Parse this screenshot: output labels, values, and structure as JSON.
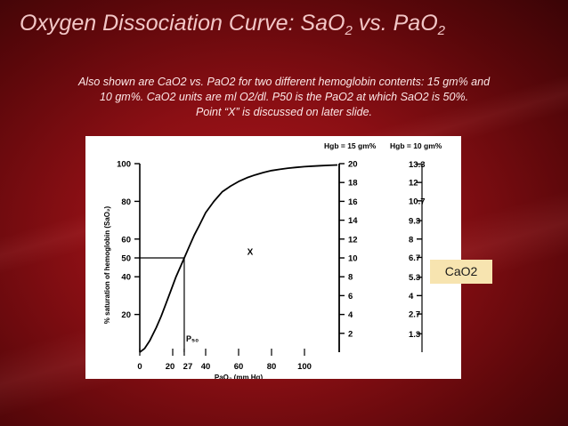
{
  "slide": {
    "title_main": "Oxygen Dissociation Curve:  SaO",
    "title_sub1": "2",
    "title_vs": " vs. PaO",
    "title_sub2": "2",
    "caption_line1": "Also shown are CaO2 vs. PaO2 for two different hemoglobin contents:  15 gm% and",
    "caption_line2": "10 gm%.  CaO2 units are ml O2/dl.  P50 is the PaO2 at which SaO2 is 50%.",
    "caption_line3": "Point “X” is discussed on later slide.",
    "cao2_label": "CaO2"
  },
  "chart_data": {
    "type": "line",
    "x_ticks": [
      0,
      20,
      27,
      40,
      60,
      80,
      100
    ],
    "x_tick_labels": [
      "0",
      "20",
      "27",
      "40",
      "60",
      "80",
      "100"
    ],
    "xlim": [
      0,
      120
    ],
    "y_ticks": [
      20,
      40,
      50,
      60,
      80,
      100
    ],
    "y_tick_labels": [
      "20",
      "40",
      "50",
      "60",
      "80",
      "100"
    ],
    "ylim": [
      0,
      100
    ],
    "xlabel": "PaO₂ (mm Hg)",
    "ylabel": "% saturation of hemoglobin (SaO₂)",
    "series": [
      {
        "x": [
          0,
          3,
          6,
          10,
          13,
          16,
          19,
          22,
          25,
          27,
          30,
          33,
          36,
          40,
          45,
          50,
          55,
          60,
          65,
          70,
          75,
          80,
          85,
          90,
          95,
          100,
          105,
          110,
          115,
          120
        ],
        "values": [
          0,
          2,
          6,
          13,
          19,
          26,
          33,
          40,
          46,
          50,
          56,
          62,
          67,
          74,
          80,
          85,
          88,
          90.5,
          92.5,
          94,
          95.3,
          96.3,
          97,
          97.6,
          98,
          98.4,
          98.7,
          98.9,
          99.1,
          99.3
        ]
      }
    ],
    "right_axes": [
      {
        "title": "Hgb = 15 gm%",
        "ticks": [
          20,
          18,
          16,
          14,
          12,
          10,
          8,
          6,
          4,
          2
        ],
        "tick_labels": [
          "20",
          "18",
          "16",
          "14",
          "12",
          "10",
          "8",
          "6",
          "4",
          "2"
        ],
        "range": [
          0,
          20
        ]
      },
      {
        "title": "Hgb = 10 gm%",
        "ticks": [
          13.3,
          12,
          10.7,
          9.3,
          8,
          6.7,
          5.3,
          4,
          2.7,
          1.3
        ],
        "tick_labels": [
          "13.3",
          "12",
          "10.7",
          "9.3",
          "8",
          "6.7",
          "5.3",
          "4",
          "2.7",
          "1.3"
        ],
        "range": [
          0,
          13.33
        ]
      }
    ],
    "annotations": [
      {
        "text": "X",
        "x": 67,
        "y": 53
      },
      {
        "text": "P₅₀",
        "x": 27,
        "y": 7
      }
    ],
    "reference_lines": [
      {
        "kind": "horizontal",
        "y": 50,
        "x_from": 0,
        "x_to": 27
      },
      {
        "kind": "vertical",
        "x": 27,
        "y_from": 0,
        "y_to": 50
      }
    ],
    "grid": false
  }
}
